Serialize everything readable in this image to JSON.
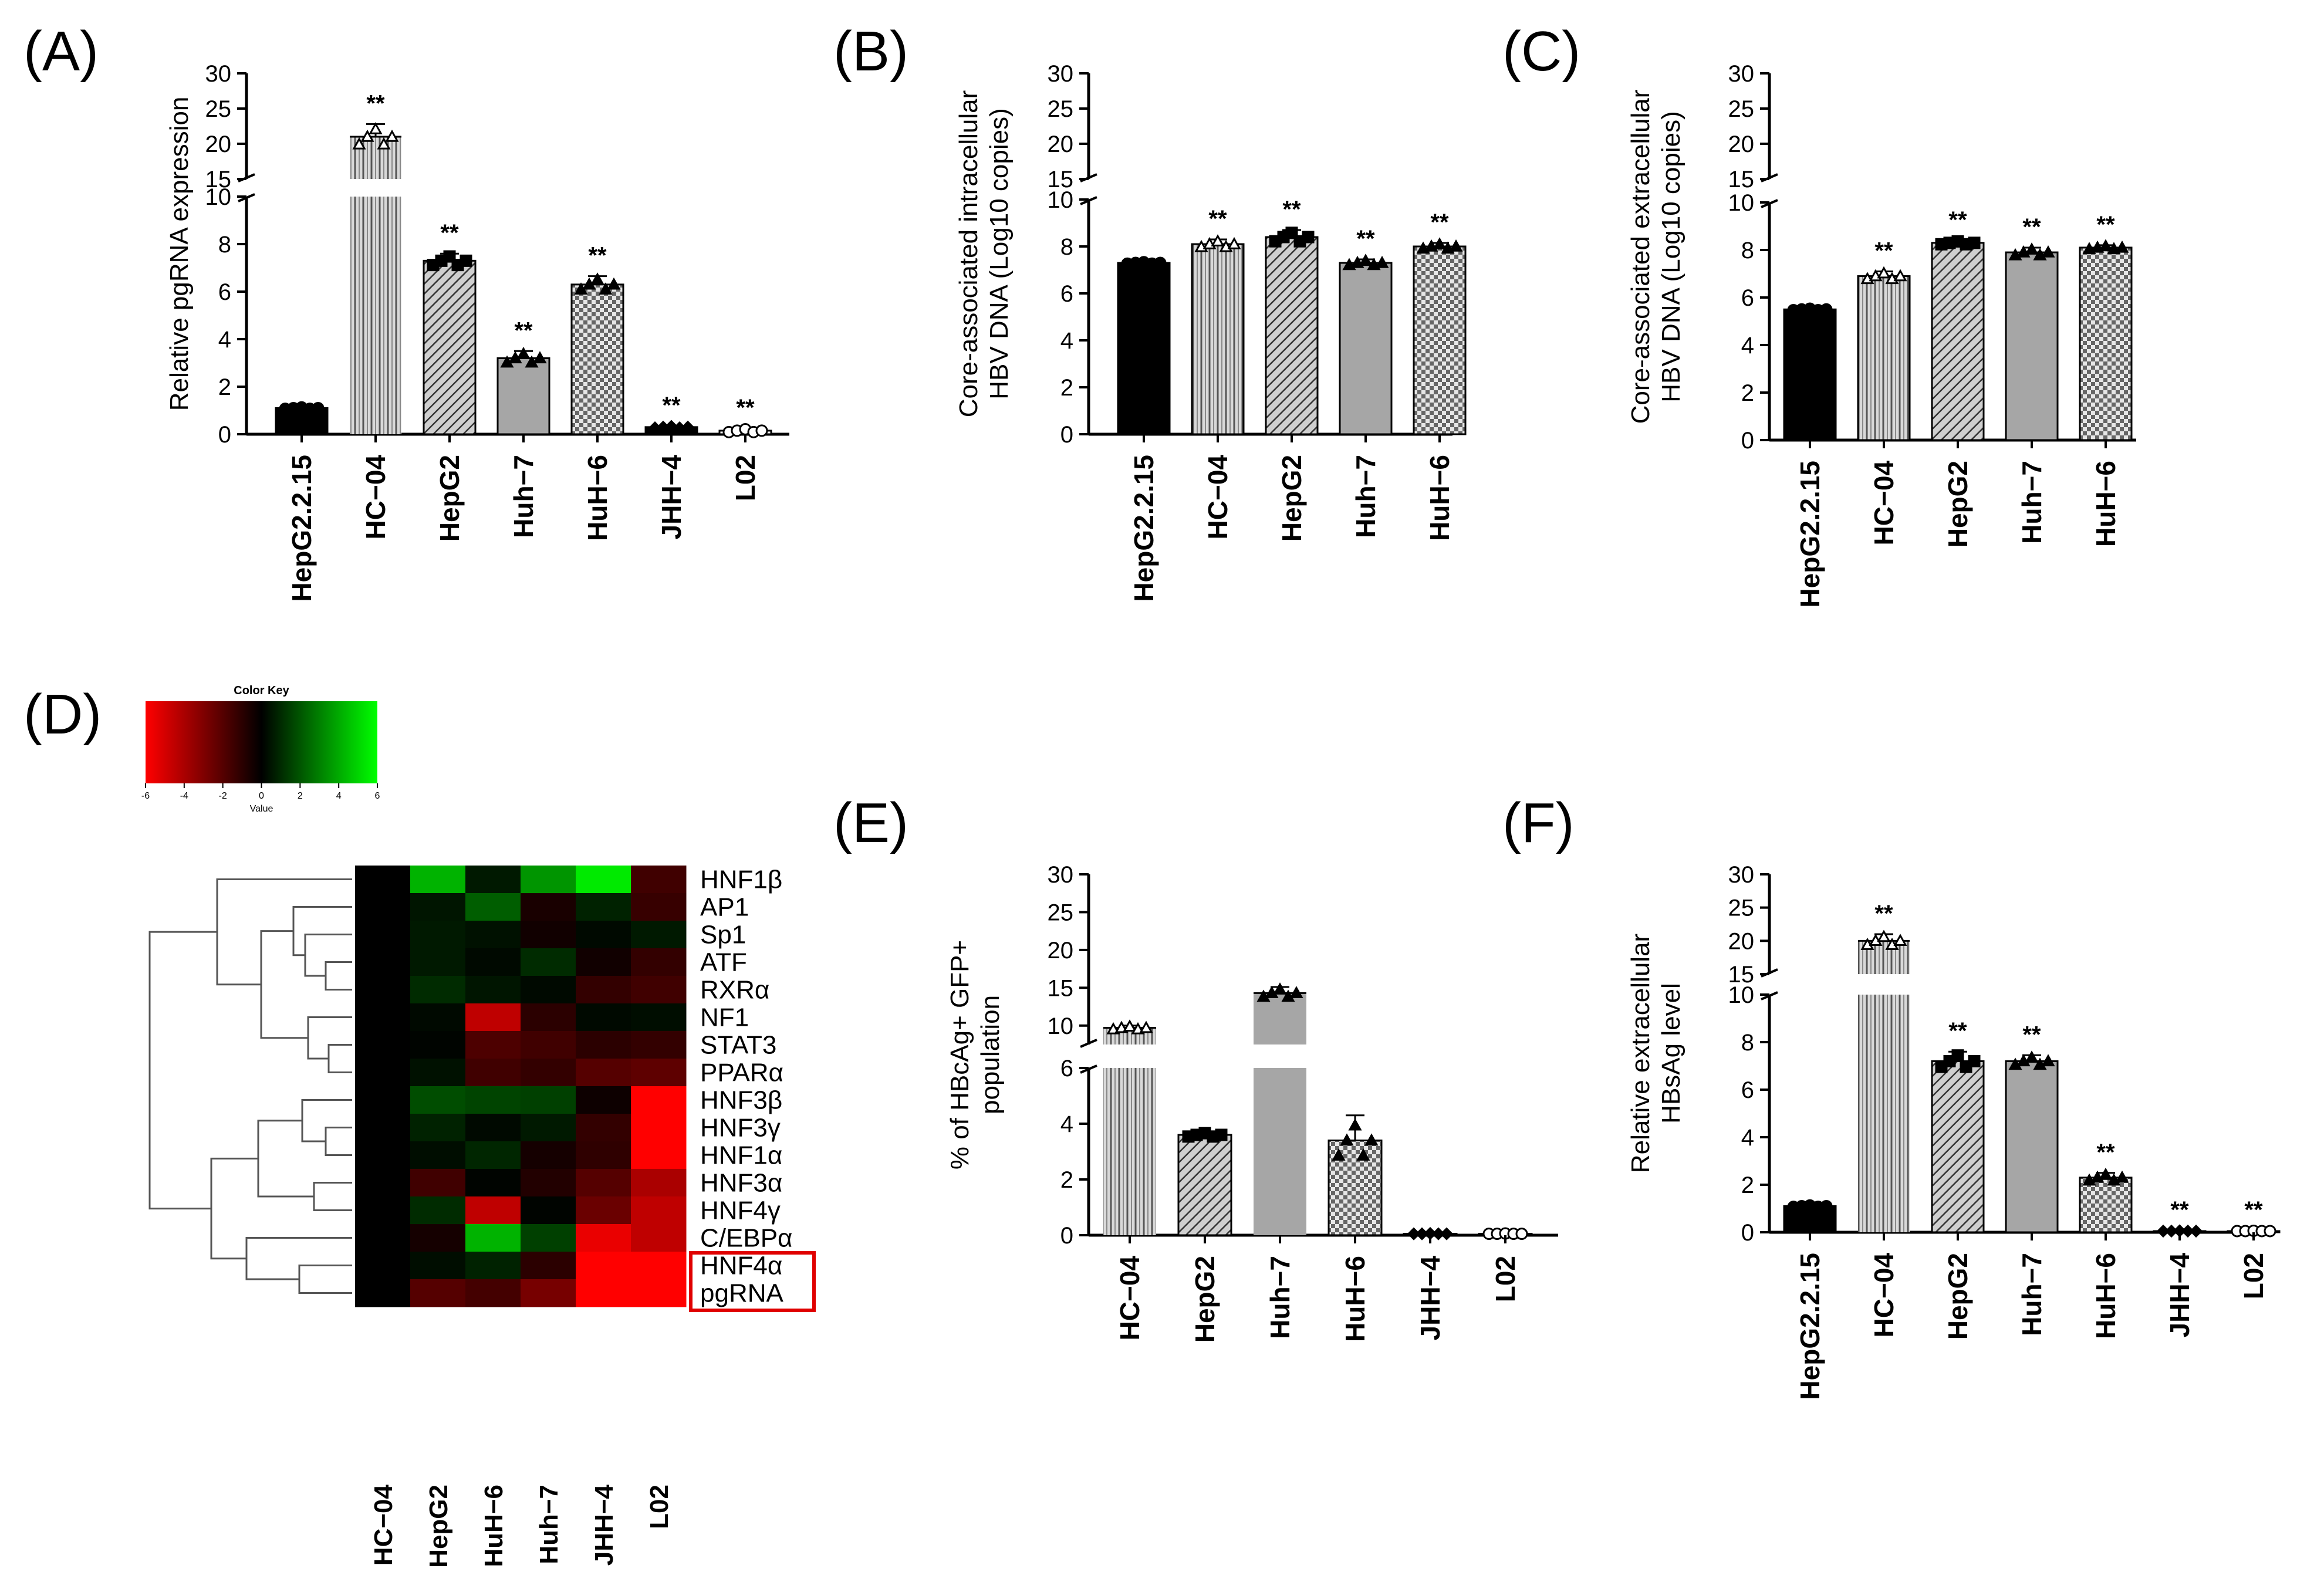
{
  "figure": {
    "panels": [
      "(A)",
      "(B)",
      "(C)",
      "(D)",
      "(E)",
      "(F)"
    ]
  },
  "chart_data": [
    {
      "id": "A",
      "type": "bar",
      "panel_label": "(A)",
      "ylabel": "Relative pgRNA expression",
      "categories": [
        "HepG2.2.15",
        "HC−04",
        "HepG2",
        "Huh−7",
        "HuH−6",
        "JHH−4",
        "L02"
      ],
      "values": [
        1.1,
        21.0,
        7.3,
        3.2,
        6.3,
        0.3,
        0.15
      ],
      "errors": [
        0.05,
        1.8,
        0.3,
        0.3,
        0.35,
        0.05,
        0.1
      ],
      "significance": [
        "",
        "**",
        "**",
        "**",
        "**",
        "**",
        "**"
      ],
      "patterns": [
        "solid",
        "vlines",
        "diag",
        "gray",
        "check",
        "solid",
        "white"
      ],
      "markers": [
        "circle",
        "triangle-open",
        "square",
        "triangle",
        "triangle",
        "diamond",
        "circle-open"
      ],
      "lower_ticks": [
        "0",
        "2",
        "4",
        "6",
        "8",
        "10"
      ],
      "upper_ticks": [
        "15",
        "20",
        "25",
        "30"
      ],
      "ylim_lower": [
        0,
        10
      ],
      "ylim_upper": [
        15,
        30
      ]
    },
    {
      "id": "B",
      "type": "bar",
      "panel_label": "(B)",
      "ylabel_line1": "Core-associated intracellular",
      "ylabel_line2": "HBV DNA (Log10 copies)",
      "categories": [
        "HepG2.2.15",
        "HC−04",
        "HepG2",
        "Huh−7",
        "HuH−6"
      ],
      "values": [
        7.3,
        8.1,
        8.4,
        7.3,
        8.0
      ],
      "errors": [
        0.05,
        0.2,
        0.3,
        0.15,
        0.15
      ],
      "significance": [
        "",
        "**",
        "**",
        "**",
        "**"
      ],
      "patterns": [
        "solid",
        "vlines",
        "diag",
        "gray",
        "check"
      ],
      "markers": [
        "circle",
        "triangle-open",
        "square",
        "triangle",
        "triangle"
      ],
      "lower_ticks": [
        "0",
        "2",
        "4",
        "6",
        "8",
        "10"
      ],
      "upper_ticks": [
        "15",
        "20",
        "25",
        "30"
      ],
      "ylim_lower": [
        0,
        10
      ],
      "ylim_upper": [
        15,
        30
      ]
    },
    {
      "id": "C",
      "type": "bar",
      "panel_label": "(C)",
      "ylabel_line1": "Core-associated extracellular",
      "ylabel_line2": "HBV DNA (Log10 copies)",
      "categories": [
        "HepG2.2.15",
        "HC−04",
        "HepG2",
        "Huh−7",
        "HuH−6"
      ],
      "values": [
        5.5,
        6.9,
        8.3,
        7.9,
        8.1
      ],
      "errors": [
        0.05,
        0.2,
        0.1,
        0.2,
        0.1
      ],
      "significance": [
        "",
        "**",
        "**",
        "**",
        "**"
      ],
      "patterns": [
        "solid",
        "vlines",
        "diag",
        "gray",
        "check"
      ],
      "markers": [
        "circle",
        "triangle-open",
        "square",
        "triangle",
        "triangle"
      ],
      "lower_ticks": [
        "0",
        "2",
        "4",
        "6",
        "8",
        "10"
      ],
      "upper_ticks": [
        "15",
        "20",
        "25",
        "30"
      ],
      "ylim_lower": [
        0,
        10
      ],
      "ylim_upper": [
        15,
        30
      ]
    },
    {
      "id": "E",
      "type": "bar",
      "panel_label": "(E)",
      "ylabel_line1": "% of HBcAg+ GFP+",
      "ylabel_line2": "population",
      "categories": [
        "HC−04",
        "HepG2",
        "Huh−7",
        "HuH−6",
        "JHH−4",
        "L02"
      ],
      "values": [
        9.7,
        3.6,
        14.3,
        3.4,
        0.05,
        0.05
      ],
      "errors": [
        0.3,
        0.1,
        0.8,
        0.9,
        0.02,
        0.02
      ],
      "significance": [
        "",
        "",
        "",
        "",
        "",
        ""
      ],
      "patterns": [
        "vlines",
        "diag",
        "gray",
        "check",
        "solid",
        "white"
      ],
      "markers": [
        "triangle-open",
        "square",
        "triangle",
        "triangle",
        "diamond",
        "circle-open"
      ],
      "lower_ticks": [
        "0",
        "2",
        "4",
        "6"
      ],
      "upper_ticks": [
        "10",
        "15",
        "20",
        "25",
        "30"
      ],
      "ylim_lower": [
        0,
        6
      ],
      "ylim_upper": [
        7.5,
        30
      ]
    },
    {
      "id": "F",
      "type": "bar",
      "panel_label": "(F)",
      "ylabel_line1": "Relative extracellular",
      "ylabel_line2": "HBsAg level",
      "categories": [
        "HepG2.2.15",
        "HC−04",
        "HepG2",
        "Huh−7",
        "HuH−6",
        "JHH−4",
        "L02"
      ],
      "values": [
        1.1,
        20.0,
        7.2,
        7.2,
        2.3,
        0.05,
        0.05
      ],
      "errors": [
        0.05,
        1.0,
        0.4,
        0.25,
        0.2,
        0.02,
        0.02
      ],
      "significance": [
        "",
        "**",
        "**",
        "**",
        "**",
        "**",
        "**"
      ],
      "patterns": [
        "solid",
        "vlines",
        "diag",
        "gray",
        "check",
        "solid",
        "white"
      ],
      "markers": [
        "circle",
        "triangle-open",
        "square",
        "triangle",
        "triangle",
        "diamond",
        "circle-open"
      ],
      "lower_ticks": [
        "0",
        "2",
        "4",
        "6",
        "8",
        "10"
      ],
      "upper_ticks": [
        "15",
        "20",
        "25",
        "30"
      ],
      "ylim_lower": [
        0,
        10
      ],
      "ylim_upper": [
        15,
        30
      ]
    },
    {
      "id": "D",
      "type": "heatmap",
      "panel_label": "(D)",
      "color_key": {
        "title": "Color Key",
        "ticks": [
          "-6",
          "-4",
          "-2",
          "0",
          "2",
          "4",
          "6"
        ],
        "xlabel": "Value",
        "range": [
          -6,
          6
        ],
        "low_color": "#ff0000",
        "mid_color": "#000000",
        "high_color": "#00ff00"
      },
      "columns": [
        "HC−04",
        "HepG2",
        "HuH−6",
        "Huh−7",
        "JHH−4",
        "L02"
      ],
      "rows": [
        "HNF1β",
        "AP1",
        "Sp1",
        "ATF",
        "RXRα",
        "NF1",
        "STAT3",
        "PPARα",
        "HNF3β",
        "HNF3γ",
        "HNF1α",
        "HNF3α",
        "HNF4γ",
        "C/EBPα",
        "HNF4α",
        "pgRNA"
      ],
      "highlighted_rows": [
        "HNF4α",
        "pgRNA"
      ],
      "values": [
        [
          0,
          4.2,
          0.6,
          3.5,
          5.5,
          -1.5
        ],
        [
          0,
          0.5,
          2.2,
          -0.6,
          0.8,
          -1.3
        ],
        [
          0,
          0.6,
          0.4,
          -0.4,
          0.2,
          0.6
        ],
        [
          0,
          0.6,
          0.2,
          1.0,
          -0.4,
          -1.2
        ],
        [
          0,
          1.0,
          0.5,
          0.2,
          -1.2,
          -1.5
        ],
        [
          0,
          0.2,
          -4.5,
          -1.0,
          0.2,
          0.3
        ],
        [
          0,
          0.1,
          -1.8,
          -1.5,
          -1.0,
          -1.2
        ],
        [
          0,
          0.4,
          -1.5,
          -1.2,
          -2.0,
          -2.2
        ],
        [
          0,
          1.8,
          1.6,
          1.5,
          -0.3,
          -6
        ],
        [
          0,
          0.8,
          0.2,
          0.6,
          -1.2,
          -6
        ],
        [
          0,
          0.3,
          0.9,
          -0.5,
          -1.1,
          -6
        ],
        [
          0,
          -1.5,
          0.1,
          -0.8,
          -2.0,
          -4.0
        ],
        [
          0,
          1.0,
          -4.5,
          0.1,
          -2.5,
          -4.5
        ],
        [
          0,
          -0.5,
          4.2,
          1.5,
          -5.5,
          -4.5
        ],
        [
          0,
          0.3,
          0.8,
          -1.0,
          -6,
          -6
        ],
        [
          0,
          -2.0,
          -1.6,
          -2.8,
          -6,
          -6
        ]
      ],
      "dendrogram_order_note": "rows clustered hierarchically"
    }
  ]
}
